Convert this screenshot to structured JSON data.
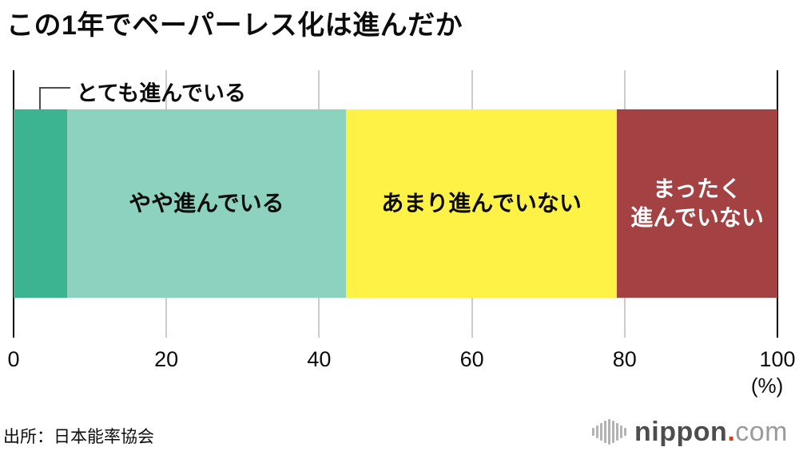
{
  "title": "この1年でペーパーレス化は進んだか",
  "chart_data": {
    "type": "bar",
    "orientation": "horizontal-stacked",
    "title": "この1年でペーパーレス化は進んだか",
    "xlim": [
      0,
      100
    ],
    "x_ticks": [
      0,
      20,
      40,
      60,
      80,
      100
    ],
    "x_unit": "(%)",
    "grid": "vertical",
    "axis_color": "#000000",
    "grid_color": "#cccccc",
    "series": [
      {
        "label": "とても進んでいる",
        "value": 7,
        "color": "#3cb492",
        "text_color": "#0c0c0c",
        "label_placement": "callout"
      },
      {
        "label": "やや進んでいる",
        "value": 36.5,
        "color": "#8dd2be",
        "text_color": "#0c0c0c",
        "label_placement": "inside"
      },
      {
        "label": "あまり進んでいない",
        "value": 35.5,
        "color": "#fff247",
        "text_color": "#0c0c0c",
        "label_placement": "inside"
      },
      {
        "label": "まったく進んでいない",
        "value": 21,
        "color": "#a44142",
        "text_color": "#ffffff",
        "label_placement": "inside",
        "label_lines": [
          "まったく",
          "進んでいない"
        ]
      }
    ]
  },
  "source": "出所：日本能率協会",
  "logo": {
    "name": "nippon",
    "dot": ".",
    "tld": "com",
    "icon": "soundwave-bars-icon",
    "bar_heights": [
      10,
      16,
      22,
      28,
      32,
      28,
      22,
      16,
      10
    ]
  }
}
